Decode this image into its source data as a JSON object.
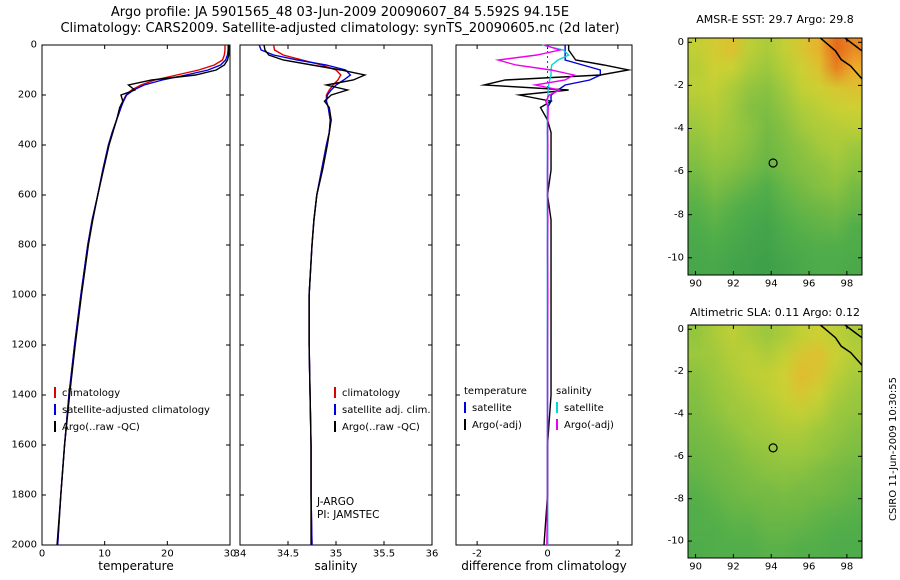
{
  "page": {
    "title_line1": "Argo profile: JA 5901565_48 03-Jun-2009 20090607_84 5.592S 94.15E",
    "title_line2": "Climatology: CARS2009. Satellite-adjusted climatology: synTS_20090605.nc (2d later)",
    "credit": "CSIRO 11-Jun-2009 10:30:55"
  },
  "annotation": {
    "line1": "J-ARGO",
    "line2": "PI: JAMSTEC"
  },
  "legends": {
    "temperature": {
      "items": [
        {
          "label": "climatology",
          "color": "#dd0000"
        },
        {
          "label": "satellite-adjusted climatology",
          "color": "#0000dd"
        },
        {
          "label": "Argo(..raw -QC)",
          "color": "#000000"
        }
      ]
    },
    "salinity": {
      "items": [
        {
          "label": "climatology",
          "color": "#dd0000"
        },
        {
          "label": "satellite adj. clim.",
          "color": "#0000dd"
        },
        {
          "label": "Argo(..raw -QC)",
          "color": "#000000"
        }
      ]
    },
    "difference": {
      "temperature": {
        "header": "temperature",
        "items": [
          {
            "label": "satellite",
            "color": "#0000dd"
          },
          {
            "label": "Argo(-adj)",
            "color": "#000000"
          }
        ]
      },
      "salinity": {
        "header": "salinity",
        "items": [
          {
            "label": "satellite",
            "color": "#00d8d8"
          },
          {
            "label": "Argo(-adj)",
            "color": "#ee00ee"
          }
        ]
      }
    }
  },
  "map_colormap": [
    [
      0,
      "#1d8a4a"
    ],
    [
      0.3,
      "#52ae4a"
    ],
    [
      0.5,
      "#9cc83e"
    ],
    [
      0.65,
      "#ccd233"
    ],
    [
      0.8,
      "#eead2c"
    ],
    [
      1,
      "#e05515"
    ]
  ],
  "chart_data": [
    {
      "id": "temperature-profile",
      "type": "line",
      "xlabel": "temperature",
      "xlim": [
        0,
        30
      ],
      "xticks": [
        0,
        10,
        20,
        30
      ],
      "ylim": [
        0,
        2000
      ],
      "yticks": [
        0,
        200,
        400,
        600,
        800,
        1000,
        1200,
        1400,
        1600,
        1800,
        2000
      ],
      "y_axis": "depth",
      "show_ylabels": true,
      "depths": [
        0,
        20,
        40,
        60,
        80,
        100,
        120,
        140,
        160,
        180,
        200,
        225,
        250,
        300,
        350,
        400,
        500,
        600,
        700,
        800,
        1000,
        1200,
        1400,
        1600,
        1800,
        2000
      ],
      "series": [
        {
          "name": "climatology",
          "color": "#dd0000",
          "values": [
            29.2,
            29.2,
            29.1,
            28.8,
            27.5,
            25.0,
            21.5,
            18.0,
            15.8,
            14.3,
            13.4,
            12.9,
            12.6,
            11.9,
            11.2,
            10.6,
            9.7,
            8.9,
            8.0,
            7.3,
            6.2,
            5.2,
            4.3,
            3.6,
            3.0,
            2.5
          ]
        },
        {
          "name": "satellite-adjusted climatology",
          "color": "#0000dd",
          "values": [
            29.7,
            29.7,
            29.6,
            29.3,
            28.5,
            26.5,
            23.0,
            19.2,
            16.3,
            14.6,
            13.5,
            13.0,
            12.6,
            11.9,
            11.2,
            10.6,
            9.7,
            8.9,
            8.0,
            7.3,
            6.2,
            5.2,
            4.3,
            3.6,
            3.0,
            2.5
          ]
        },
        {
          "name": "Argo(..raw -QC)",
          "color": "#000000",
          "values": [
            29.8,
            29.8,
            29.8,
            29.6,
            29.1,
            27.8,
            24.5,
            17.5,
            13.8,
            14.8,
            12.6,
            12.9,
            12.4,
            11.9,
            11.3,
            10.7,
            9.8,
            8.9,
            8.1,
            7.4,
            6.3,
            5.3,
            4.4,
            3.6,
            3.0,
            2.4
          ]
        }
      ]
    },
    {
      "id": "salinity-profile",
      "type": "line",
      "xlabel": "salinity",
      "xlim": [
        34,
        36
      ],
      "xticks": [
        34,
        34.5,
        35,
        35.5,
        36
      ],
      "ylim": [
        0,
        2000
      ],
      "yticks": [
        0,
        200,
        400,
        600,
        800,
        1000,
        1200,
        1400,
        1600,
        1800,
        2000
      ],
      "show_ylabels": false,
      "depths": [
        0,
        20,
        40,
        60,
        80,
        100,
        120,
        140,
        160,
        180,
        200,
        225,
        250,
        300,
        350,
        400,
        500,
        600,
        700,
        800,
        1000,
        1200,
        1400,
        1600,
        1800,
        2000
      ],
      "series": [
        {
          "name": "climatology",
          "color": "#dd0000",
          "values": [
            34.35,
            34.36,
            34.45,
            34.65,
            34.85,
            35.0,
            35.05,
            35.02,
            34.97,
            34.93,
            34.9,
            34.9,
            34.92,
            34.94,
            34.93,
            34.9,
            34.85,
            34.8,
            34.77,
            34.75,
            34.72,
            34.72,
            34.73,
            34.74,
            34.74,
            34.75
          ]
        },
        {
          "name": "satellite adj. clim.",
          "color": "#0000dd",
          "values": [
            34.2,
            34.22,
            34.35,
            34.6,
            34.9,
            35.1,
            35.15,
            35.08,
            35.0,
            34.95,
            34.91,
            34.9,
            34.92,
            34.94,
            34.93,
            34.9,
            34.85,
            34.8,
            34.77,
            34.75,
            34.72,
            34.72,
            34.73,
            34.74,
            34.74,
            34.75
          ]
        },
        {
          "name": "Argo(..raw -QC)",
          "color": "#000000",
          "values": [
            34.25,
            34.26,
            34.3,
            34.45,
            34.75,
            35.05,
            35.3,
            35.18,
            34.9,
            35.12,
            34.95,
            34.88,
            34.93,
            34.95,
            34.93,
            34.91,
            34.86,
            34.8,
            34.77,
            34.75,
            34.72,
            34.72,
            34.73,
            34.74,
            34.74,
            34.74
          ]
        }
      ]
    },
    {
      "id": "difference-profile",
      "type": "line",
      "xlabel": "difference from climatology",
      "xlim": [
        -2.6,
        2.4
      ],
      "xticks": [
        -2,
        0,
        2
      ],
      "ylim": [
        0,
        2000
      ],
      "yticks": [
        0,
        200,
        400,
        600,
        800,
        1000,
        1200,
        1400,
        1600,
        1800,
        2000
      ],
      "show_ylabels": false,
      "zeroline": true,
      "zeroline_color": "#dd0000",
      "depths": [
        0,
        20,
        40,
        60,
        80,
        100,
        120,
        140,
        160,
        180,
        200,
        225,
        250,
        300,
        350,
        400,
        500,
        600,
        700,
        800,
        1000,
        1200,
        1400,
        1600,
        1800,
        2000
      ],
      "series": [
        {
          "name": "temperature satellite",
          "color": "#0000dd",
          "values": [
            0.5,
            0.5,
            0.5,
            0.5,
            1.0,
            1.5,
            1.5,
            1.2,
            0.5,
            0.3,
            0.1,
            0.1,
            0.0,
            0.0,
            0.0,
            0.0,
            0.0,
            0.0,
            0.0,
            0.0,
            0.0,
            0.0,
            0.0,
            0.0,
            0.0,
            0.0
          ]
        },
        {
          "name": "temperature Argo(-adj)",
          "color": "#000000",
          "values": [
            0.6,
            0.6,
            0.7,
            0.8,
            1.6,
            2.3,
            1.5,
            -1.2,
            -1.8,
            0.6,
            -0.8,
            0.1,
            -0.2,
            0.0,
            0.1,
            0.1,
            0.1,
            0.0,
            0.1,
            0.1,
            0.1,
            0.1,
            0.1,
            0.0,
            0.0,
            -0.1
          ]
        },
        {
          "name": "salinity satellite",
          "color": "#00d8d8",
          "values": [
            -0.15,
            0.45,
            0.6,
            0.3,
            0.12,
            0.1,
            0.1,
            0.06,
            0.03,
            0.02,
            0.01,
            0.0,
            0.0,
            0.0,
            0.0,
            0.0,
            0.0,
            0.0,
            0.0,
            0.0,
            0.0,
            0.0,
            0.0,
            0.0,
            0.0,
            0.0
          ]
        },
        {
          "name": "salinity Argo(-adj)",
          "color": "#ee00ee",
          "values": [
            -0.1,
            0.35,
            -0.3,
            -1.4,
            -0.9,
            0.1,
            0.75,
            0.5,
            -0.35,
            0.35,
            0.05,
            -0.05,
            0.02,
            0.01,
            0.0,
            0.01,
            0.0,
            0.0,
            0.01,
            0.0,
            0.01,
            0.0,
            0.0,
            0.0,
            0.0,
            -0.02
          ]
        }
      ]
    },
    {
      "id": "sst-map",
      "type": "heatmap",
      "title": "AMSR-E SST: 29.7 Argo: 29.8",
      "lon_range": [
        89.6,
        98.8
      ],
      "lat_range": [
        0.2,
        -10.8
      ],
      "xticks": [
        90,
        92,
        94,
        96,
        98
      ],
      "yticks": [
        0,
        -2,
        -4,
        -6,
        -8,
        -10
      ],
      "marker": {
        "lon": 94.1,
        "lat": -5.6
      },
      "coast": [
        [
          [
            96.6,
            0.2
          ],
          [
            97.0,
            -0.1
          ],
          [
            97.4,
            -0.4
          ],
          [
            97.7,
            -0.8
          ],
          [
            98.2,
            -1.1
          ],
          [
            98.6,
            -1.5
          ],
          [
            98.8,
            -1.7
          ]
        ],
        [
          [
            97.9,
            0.2
          ],
          [
            98.2,
            0.0
          ],
          [
            98.5,
            -0.2
          ],
          [
            98.8,
            -0.4
          ]
        ]
      ],
      "grid": [
        [
          0.62,
          0.68,
          0.72,
          0.6,
          0.55,
          0.62,
          0.7,
          0.78,
          0.95,
          0.88
        ],
        [
          0.58,
          0.66,
          0.64,
          0.55,
          0.5,
          0.58,
          0.66,
          0.72,
          0.9,
          0.8
        ],
        [
          0.6,
          0.62,
          0.55,
          0.48,
          0.45,
          0.52,
          0.62,
          0.66,
          0.7,
          0.72
        ],
        [
          0.55,
          0.58,
          0.52,
          0.44,
          0.42,
          0.48,
          0.56,
          0.6,
          0.64,
          0.66
        ],
        [
          0.5,
          0.55,
          0.5,
          0.46,
          0.4,
          0.44,
          0.52,
          0.56,
          0.58,
          0.6
        ],
        [
          0.46,
          0.5,
          0.48,
          0.44,
          0.38,
          0.42,
          0.46,
          0.52,
          0.55,
          0.5
        ],
        [
          0.42,
          0.46,
          0.44,
          0.4,
          0.36,
          0.4,
          0.44,
          0.46,
          0.5,
          0.46
        ],
        [
          0.36,
          0.42,
          0.38,
          0.34,
          0.3,
          0.36,
          0.4,
          0.44,
          0.46,
          0.4
        ],
        [
          0.32,
          0.36,
          0.32,
          0.28,
          0.26,
          0.32,
          0.36,
          0.38,
          0.4,
          0.36
        ],
        [
          0.28,
          0.32,
          0.28,
          0.24,
          0.22,
          0.28,
          0.32,
          0.34,
          0.35,
          0.3
        ],
        [
          0.26,
          0.28,
          0.25,
          0.22,
          0.2,
          0.26,
          0.28,
          0.3,
          0.3,
          0.28
        ],
        [
          0.24,
          0.26,
          0.22,
          0.2,
          0.18,
          0.22,
          0.26,
          0.28,
          0.28,
          0.26
        ]
      ]
    },
    {
      "id": "sla-map",
      "type": "heatmap",
      "title": "Altimetric SLA: 0.11 Argo: 0.12",
      "lon_range": [
        89.6,
        98.8
      ],
      "lat_range": [
        0.2,
        -10.8
      ],
      "xticks": [
        90,
        92,
        94,
        96,
        98
      ],
      "yticks": [
        0,
        -2,
        -4,
        -6,
        -8,
        -10
      ],
      "marker": {
        "lon": 94.1,
        "lat": -5.6
      },
      "coast": [
        [
          [
            96.6,
            0.2
          ],
          [
            97.0,
            -0.1
          ],
          [
            97.4,
            -0.4
          ],
          [
            97.7,
            -0.8
          ],
          [
            98.2,
            -1.1
          ],
          [
            98.6,
            -1.5
          ],
          [
            98.8,
            -1.7
          ]
        ],
        [
          [
            97.9,
            0.2
          ],
          [
            98.2,
            0.0
          ],
          [
            98.5,
            -0.2
          ],
          [
            98.8,
            -0.4
          ]
        ]
      ],
      "grid": [
        [
          0.48,
          0.55,
          0.6,
          0.55,
          0.5,
          0.55,
          0.62,
          0.66,
          0.6,
          0.55
        ],
        [
          0.5,
          0.52,
          0.58,
          0.6,
          0.56,
          0.62,
          0.7,
          0.72,
          0.64,
          0.58
        ],
        [
          0.46,
          0.5,
          0.55,
          0.6,
          0.62,
          0.66,
          0.74,
          0.7,
          0.6,
          0.54
        ],
        [
          0.44,
          0.48,
          0.52,
          0.56,
          0.6,
          0.64,
          0.7,
          0.64,
          0.55,
          0.5
        ],
        [
          0.42,
          0.46,
          0.5,
          0.52,
          0.56,
          0.6,
          0.62,
          0.58,
          0.5,
          0.48
        ],
        [
          0.4,
          0.42,
          0.46,
          0.5,
          0.52,
          0.55,
          0.55,
          0.5,
          0.48,
          0.44
        ],
        [
          0.38,
          0.4,
          0.42,
          0.46,
          0.48,
          0.5,
          0.5,
          0.48,
          0.44,
          0.42
        ],
        [
          0.35,
          0.38,
          0.4,
          0.42,
          0.45,
          0.46,
          0.45,
          0.42,
          0.4,
          0.38
        ],
        [
          0.32,
          0.35,
          0.38,
          0.4,
          0.4,
          0.42,
          0.4,
          0.4,
          0.38,
          0.35
        ],
        [
          0.3,
          0.32,
          0.35,
          0.36,
          0.38,
          0.38,
          0.38,
          0.35,
          0.34,
          0.32
        ],
        [
          0.3,
          0.3,
          0.32,
          0.32,
          0.35,
          0.35,
          0.34,
          0.32,
          0.3,
          0.3
        ],
        [
          0.28,
          0.3,
          0.3,
          0.3,
          0.32,
          0.32,
          0.3,
          0.3,
          0.28,
          0.28
        ]
      ]
    }
  ]
}
